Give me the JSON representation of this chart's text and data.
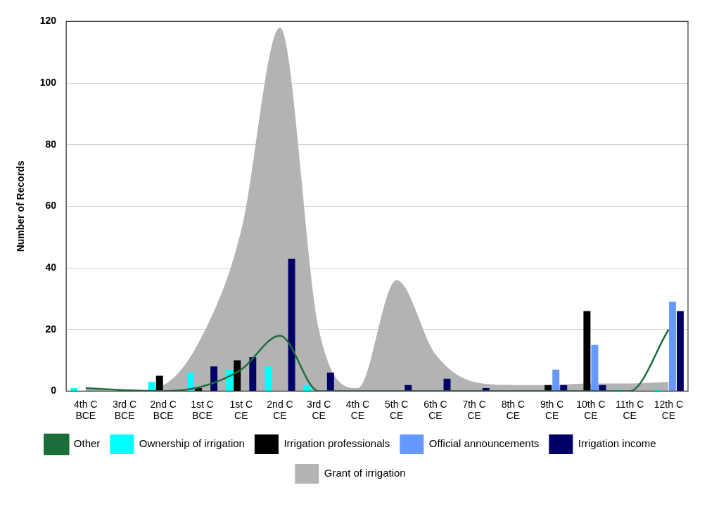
{
  "chart_data": {
    "type": "bar",
    "ylabel": "Number of Records",
    "categories": [
      "4th C BCE",
      "3rd C BCE",
      "2nd C BCE",
      "1st C BCE",
      "1st C CE",
      "2nd C CE",
      "3rd C CE",
      "4th C CE",
      "5th C CE",
      "6th C CE",
      "7th C CE",
      "8th C CE",
      "9th C CE",
      "10th C CE",
      "11th C CE",
      "12th C CE"
    ],
    "series": [
      {
        "name": "Grant of irrigation",
        "type": "area",
        "color": "#b3b3b3",
        "values": [
          1,
          0,
          2,
          18,
          52,
          118,
          20,
          1,
          36,
          12,
          3,
          2,
          2,
          2.5,
          2.5,
          3
        ]
      },
      {
        "name": "Ownership of irrigation",
        "color": "#00ffff",
        "values": [
          1,
          0,
          3,
          6,
          7,
          8,
          2,
          0,
          0,
          0,
          0,
          0,
          0,
          0,
          0.5,
          0.5
        ]
      },
      {
        "name": "Irrigation professionals",
        "color": "#000000",
        "values": [
          0,
          0,
          5,
          1,
          10,
          0,
          0,
          0,
          0,
          0,
          0,
          0,
          2,
          26,
          0,
          0
        ]
      },
      {
        "name": "Official announcements",
        "color": "#6699ff",
        "values": [
          0,
          0,
          0,
          0,
          0,
          0,
          0,
          0,
          0,
          0,
          0,
          0,
          7,
          15,
          0,
          29
        ]
      },
      {
        "name": "Irrigation income",
        "color": "#000066",
        "values": [
          0,
          0,
          0,
          8,
          11,
          43,
          6,
          0,
          2,
          4,
          1,
          0,
          2,
          2,
          0,
          26
        ]
      },
      {
        "name": "Other",
        "type": "line",
        "color": "#1b6e3a",
        "values": [
          1,
          0.3,
          0,
          1.5,
          7,
          18,
          0,
          0,
          0,
          0,
          0,
          0,
          0,
          0,
          0,
          20
        ]
      }
    ],
    "ylim": [
      0,
      120
    ],
    "yticks": [
      0,
      20,
      40,
      60,
      80,
      100,
      120
    ],
    "grid": "y",
    "legend": "bottom",
    "marker": "none"
  }
}
